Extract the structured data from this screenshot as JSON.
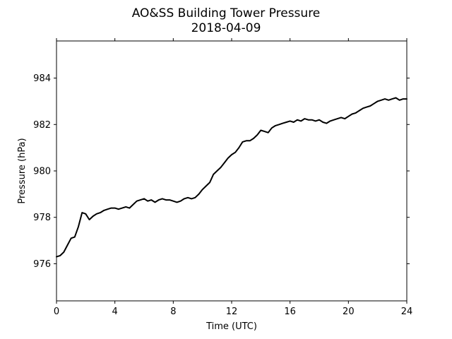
{
  "chart_data": {
    "type": "line",
    "title": "AO&SS Building Tower Pressure",
    "subtitle": "2018-04-09",
    "xlabel": "Time (UTC)",
    "ylabel": "Pressure (hPa)",
    "xlim": [
      0,
      24
    ],
    "ylim": [
      974.4,
      985.6
    ],
    "xticks": [
      0,
      4,
      8,
      12,
      16,
      20,
      24
    ],
    "yticks": [
      976,
      978,
      980,
      982,
      984
    ],
    "grid": false,
    "legend": "none",
    "line_color": "#000000",
    "series": [
      {
        "x": [
          0,
          0.25,
          0.5,
          0.75,
          1.0,
          1.25,
          1.5,
          1.75,
          2.0,
          2.25,
          2.5,
          2.75,
          3.0,
          3.25,
          3.5,
          3.75,
          4.0,
          4.25,
          4.5,
          4.75,
          5.0,
          5.25,
          5.5,
          5.75,
          6.0,
          6.25,
          6.5,
          6.75,
          7.0,
          7.25,
          7.5,
          7.75,
          8.0,
          8.25,
          8.5,
          8.75,
          9.0,
          9.25,
          9.5,
          9.75,
          10.0,
          10.25,
          10.5,
          10.75,
          11.0,
          11.25,
          11.5,
          11.75,
          12.0,
          12.25,
          12.5,
          12.75,
          13.0,
          13.25,
          13.5,
          13.75,
          14.0,
          14.25,
          14.5,
          14.75,
          15.0,
          15.25,
          15.5,
          15.75,
          16.0,
          16.25,
          16.5,
          16.75,
          17.0,
          17.25,
          17.5,
          17.75,
          18.0,
          18.25,
          18.5,
          18.75,
          19.0,
          19.25,
          19.5,
          19.75,
          20.0,
          20.25,
          20.5,
          20.75,
          21.0,
          21.25,
          21.5,
          21.75,
          22.0,
          22.25,
          22.5,
          22.75,
          23.0,
          23.25,
          23.5,
          23.75,
          24.0
        ],
        "values": [
          976.3,
          976.35,
          976.5,
          976.8,
          977.1,
          977.15,
          977.6,
          978.2,
          978.15,
          977.9,
          978.05,
          978.15,
          978.2,
          978.3,
          978.35,
          978.4,
          978.4,
          978.35,
          978.4,
          978.45,
          978.4,
          978.55,
          978.7,
          978.75,
          978.8,
          978.7,
          978.75,
          978.65,
          978.75,
          978.8,
          978.75,
          978.75,
          978.7,
          978.65,
          978.7,
          978.8,
          978.85,
          978.8,
          978.85,
          979.0,
          979.2,
          979.35,
          979.5,
          979.85,
          980.0,
          980.15,
          980.35,
          980.55,
          980.7,
          980.8,
          981.0,
          981.25,
          981.3,
          981.3,
          981.4,
          981.55,
          981.75,
          981.7,
          981.65,
          981.85,
          981.95,
          982.0,
          982.05,
          982.1,
          982.15,
          982.1,
          982.2,
          982.15,
          982.25,
          982.2,
          982.2,
          982.15,
          982.2,
          982.1,
          982.05,
          982.15,
          982.2,
          982.25,
          982.3,
          982.25,
          982.35,
          982.45,
          982.5,
          982.6,
          982.7,
          982.75,
          982.8,
          982.9,
          983.0,
          983.05,
          983.1,
          983.05,
          983.1,
          983.15,
          983.05,
          983.1,
          983.1
        ]
      }
    ]
  }
}
